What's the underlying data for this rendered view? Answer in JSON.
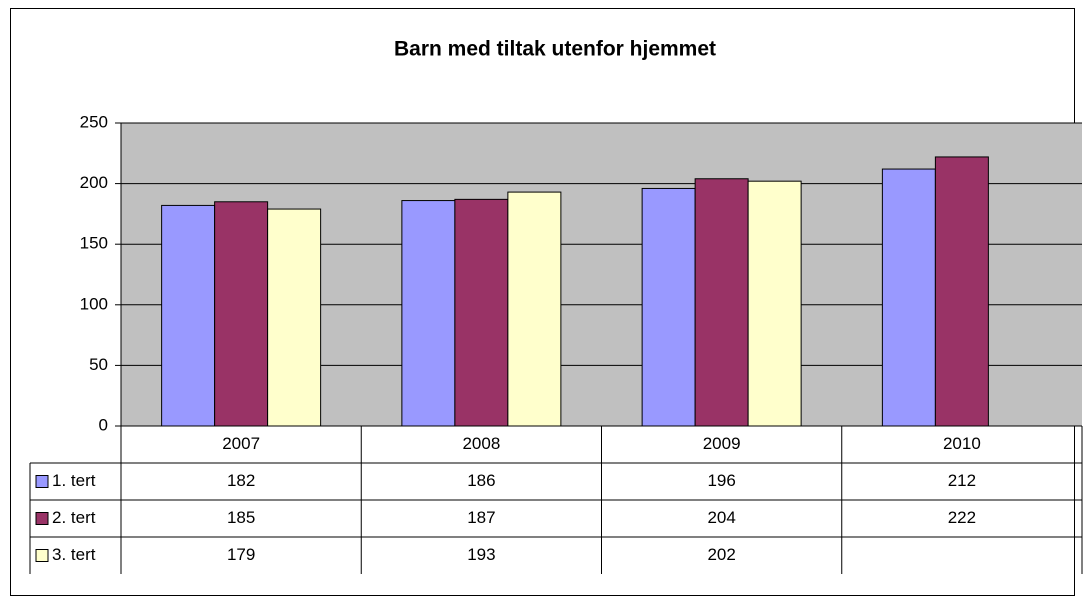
{
  "chart_data": {
    "type": "bar",
    "title": "Barn med tiltak utenfor hjemmet",
    "categories": [
      "2007",
      "2008",
      "2009",
      "2010"
    ],
    "series": [
      {
        "name": "1. tert",
        "color": "#9999ff",
        "values": [
          182,
          186,
          196,
          212
        ]
      },
      {
        "name": "2. tert",
        "color": "#993366",
        "values": [
          185,
          187,
          204,
          222
        ]
      },
      {
        "name": "3. tert",
        "color": "#ffffcc",
        "values": [
          179,
          193,
          202,
          null
        ]
      }
    ],
    "ylim": [
      0,
      250
    ],
    "yticks": [
      0,
      50,
      100,
      150,
      200,
      250
    ],
    "grid": true,
    "data_table": true
  }
}
